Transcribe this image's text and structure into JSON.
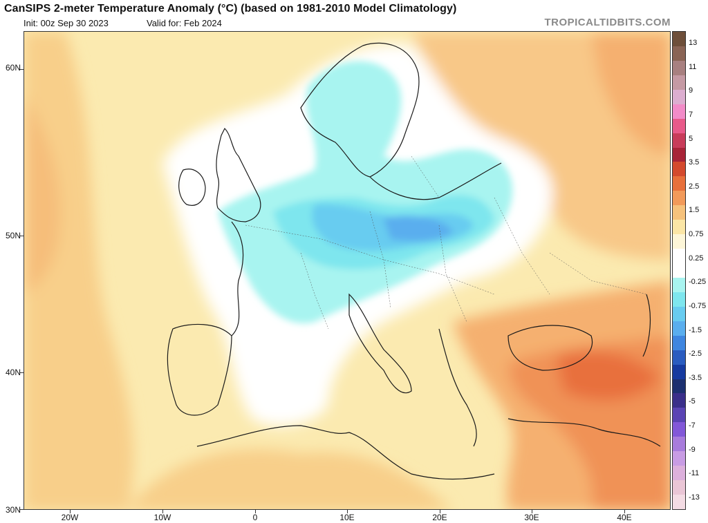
{
  "header": {
    "title": "CanSIPS 2-meter Temperature Anomaly (°C) (based on 1981-2010 Model Climatology)",
    "init": "Init: 00z Sep 30 2023",
    "valid": "Valid for: Feb 2024",
    "brand": "TROPICALTIDBITS.COM"
  },
  "axes": {
    "lat_labels": [
      "60N",
      "50N",
      "40N",
      "30N"
    ],
    "lon_labels": [
      "20W",
      "10W",
      "0",
      "10E",
      "20E",
      "30E",
      "40E"
    ]
  },
  "colorbar": {
    "labels": [
      "13",
      "11",
      "9",
      "7",
      "5",
      "3.5",
      "2.5",
      "1.5",
      "0.75",
      "0.25",
      "-0.25",
      "-0.75",
      "-1.5",
      "-2.5",
      "-3.5",
      "-5",
      "-7",
      "-9",
      "-11",
      "-13"
    ],
    "colors": [
      "#6e4f3a",
      "#8a6455",
      "#a88080",
      "#c59aa4",
      "#dcaed0",
      "#f28cc8",
      "#e85a8a",
      "#c83c5a",
      "#a82438",
      "#d44a2e",
      "#e8703c",
      "#f29a5a",
      "#f6c27c",
      "#fbe6a6",
      "#fdf6d8",
      "#ffffff",
      "#ffffff",
      "#a8f4f0",
      "#7ee6ee",
      "#68ccf0",
      "#5aaeee",
      "#3f86e0",
      "#2a5cc0",
      "#163aa0",
      "#1c3070",
      "#3a2f8a",
      "#5a44b4",
      "#8258d8",
      "#a87cdc",
      "#c89ce4",
      "#dcb0dc",
      "#eac6d6",
      "#f4dce4"
    ]
  }
}
